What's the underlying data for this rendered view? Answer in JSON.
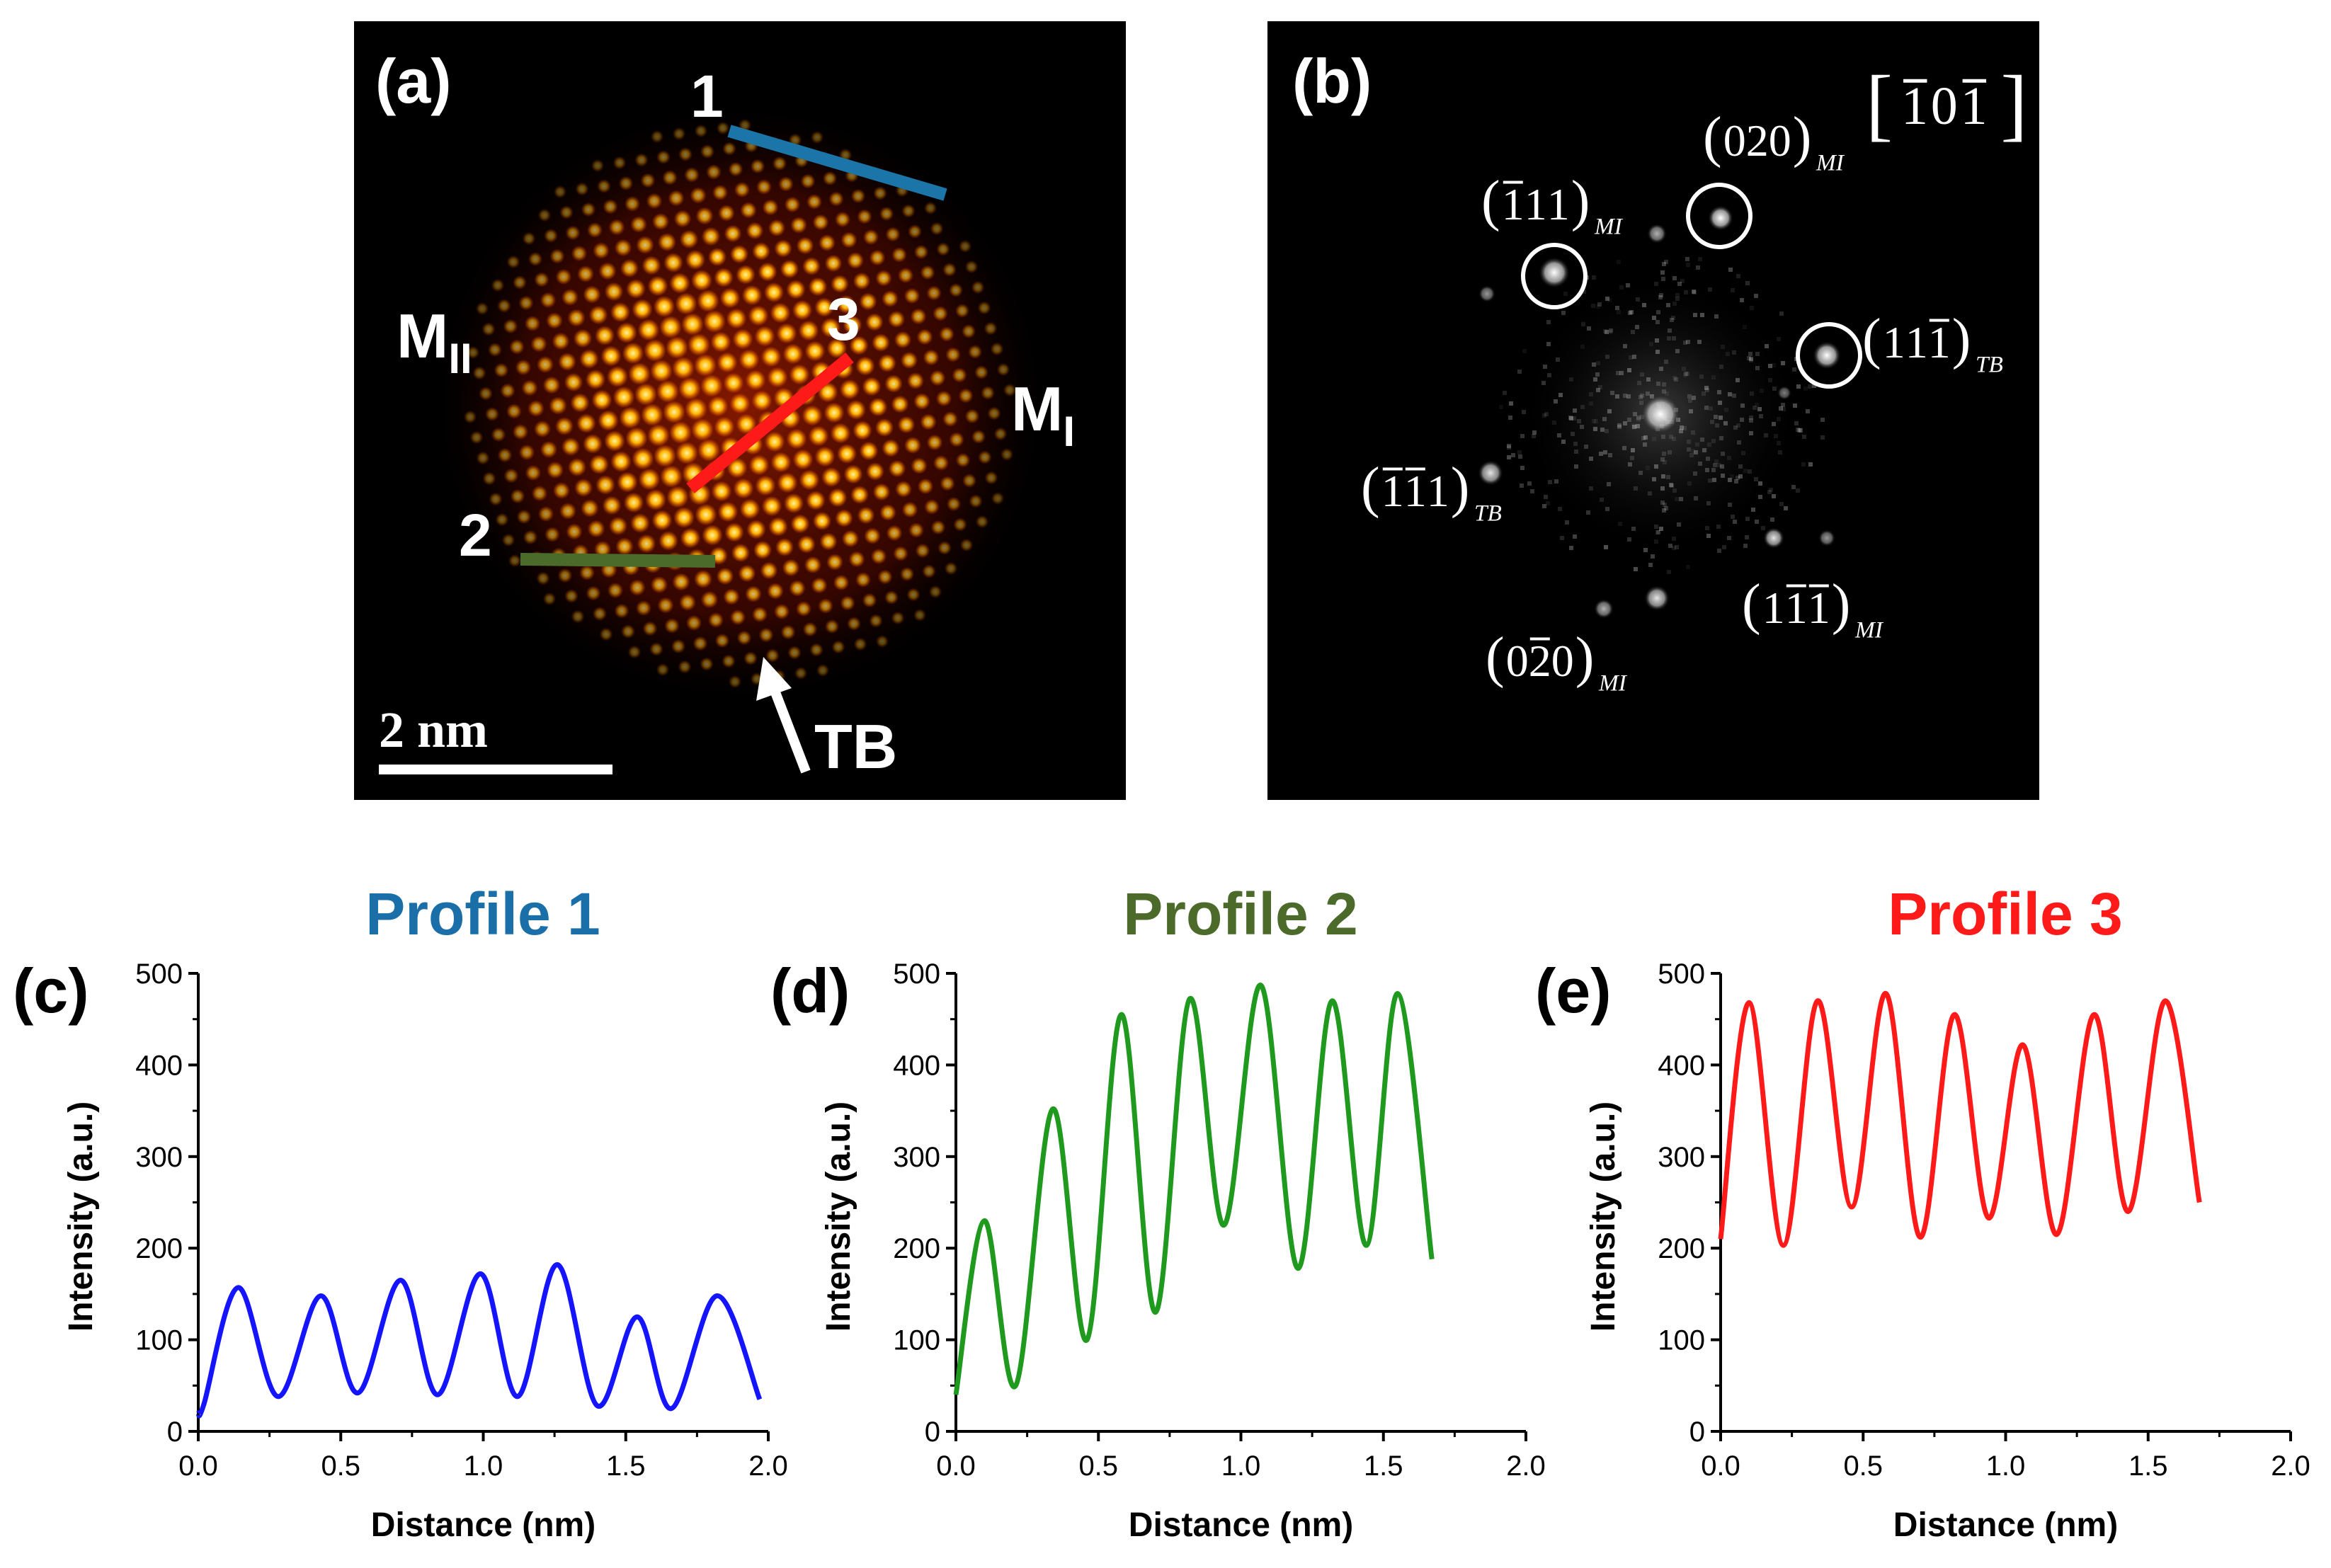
{
  "panel_a": {
    "label": "(a)",
    "line_labels": [
      "1",
      "2",
      "3"
    ],
    "region_left": "M",
    "region_left_sub": "II",
    "region_right": "M",
    "region_right_sub": "I",
    "scale_bar": "2 nm",
    "arrow_label": "TB",
    "colors": {
      "line1": "#1b75a8",
      "line2": "#4a6b2a",
      "line3": "#ff1a1a",
      "atoms": "#ffb300"
    }
  },
  "panel_b": {
    "label": "(b)",
    "zone_axis": {
      "open": "[",
      "digits": [
        "1",
        "0",
        "1"
      ],
      "close": "]"
    },
    "spots": [
      {
        "name": "spot-020-MI",
        "hkl": [
          "0",
          "2",
          "0"
        ],
        "bars": [
          false,
          false,
          false
        ],
        "sub": "MI"
      },
      {
        "name": "spot-n111-MI",
        "hkl": [
          "1",
          "1",
          "1"
        ],
        "bars": [
          true,
          false,
          false
        ],
        "sub": "MI"
      },
      {
        "name": "spot-11n1-TB",
        "hkl": [
          "1",
          "1",
          "1"
        ],
        "bars": [
          false,
          false,
          true
        ],
        "sub": "TB"
      },
      {
        "name": "spot-nn11-TB",
        "hkl": [
          "1",
          "1",
          "1"
        ],
        "bars": [
          true,
          true,
          false
        ],
        "sub": "TB"
      },
      {
        "name": "spot-1nn1-MI",
        "hkl": [
          "1",
          "1",
          "1"
        ],
        "bars": [
          false,
          true,
          true
        ],
        "sub": "MI"
      },
      {
        "name": "spot-0n20-MI",
        "hkl": [
          "0",
          "2",
          "0"
        ],
        "bars": [
          false,
          true,
          false
        ],
        "sub": "MI"
      }
    ]
  },
  "chart_data": [
    {
      "type": "line",
      "panel_label": "(c)",
      "title": "Profile 1",
      "title_color": "#1a6fa8",
      "line_color": "#1414ff",
      "xlabel": "Distance (nm)",
      "ylabel": "Intensity (a.u.)",
      "xlim": [
        0.0,
        2.0
      ],
      "ylim": [
        0,
        500
      ],
      "x_ticks": [
        "0.0",
        "0.5",
        "1.0",
        "1.5",
        "2.0"
      ],
      "y_ticks": [
        "0",
        "100",
        "200",
        "300",
        "400",
        "500"
      ],
      "x": [
        0.0,
        0.02,
        0.14,
        0.28,
        0.43,
        0.56,
        0.71,
        0.84,
        0.99,
        1.12,
        1.26,
        1.4,
        1.54,
        1.66,
        1.82,
        1.97
      ],
      "y": [
        20,
        30,
        157,
        38,
        148,
        42,
        165,
        40,
        172,
        38,
        182,
        28,
        125,
        25,
        148,
        35
      ]
    },
    {
      "type": "line",
      "panel_label": "(d)",
      "title": "Profile 2",
      "title_color": "#4c6b2a",
      "line_color": "#1f9a1f",
      "xlabel": "Distance (nm)",
      "ylabel": "Intensity (a.u.)",
      "xlim": [
        0.0,
        2.0
      ],
      "ylim": [
        0,
        500
      ],
      "x_ticks": [
        "0.0",
        "0.5",
        "1.0",
        "1.5",
        "2.0"
      ],
      "y_ticks": [
        "0",
        "100",
        "200",
        "300",
        "400",
        "500"
      ],
      "x": [
        0.0,
        0.1,
        0.21,
        0.34,
        0.46,
        0.58,
        0.7,
        0.82,
        0.94,
        1.07,
        1.2,
        1.32,
        1.44,
        1.55,
        1.67
      ],
      "y": [
        40,
        230,
        50,
        352,
        100,
        455,
        130,
        472,
        225,
        487,
        178,
        470,
        203,
        478,
        188
      ]
    },
    {
      "type": "line",
      "panel_label": "(e)",
      "title": "Profile 3",
      "title_color": "#ff1a1a",
      "line_color": "#ff1a1a",
      "xlabel": "Distance (nm)",
      "ylabel": "Intensity (a.u.)",
      "xlim": [
        0.0,
        2.0
      ],
      "ylim": [
        0,
        500
      ],
      "x_ticks": [
        "0.0",
        "0.5",
        "1.0",
        "1.5",
        "2.0"
      ],
      "y_ticks": [
        "0",
        "100",
        "200",
        "300",
        "400",
        "500"
      ],
      "x": [
        0.0,
        0.1,
        0.22,
        0.34,
        0.46,
        0.58,
        0.7,
        0.82,
        0.94,
        1.06,
        1.18,
        1.31,
        1.43,
        1.56,
        1.68
      ],
      "y": [
        210,
        468,
        203,
        470,
        245,
        478,
        212,
        455,
        233,
        422,
        215,
        455,
        240,
        470,
        250
      ]
    }
  ]
}
